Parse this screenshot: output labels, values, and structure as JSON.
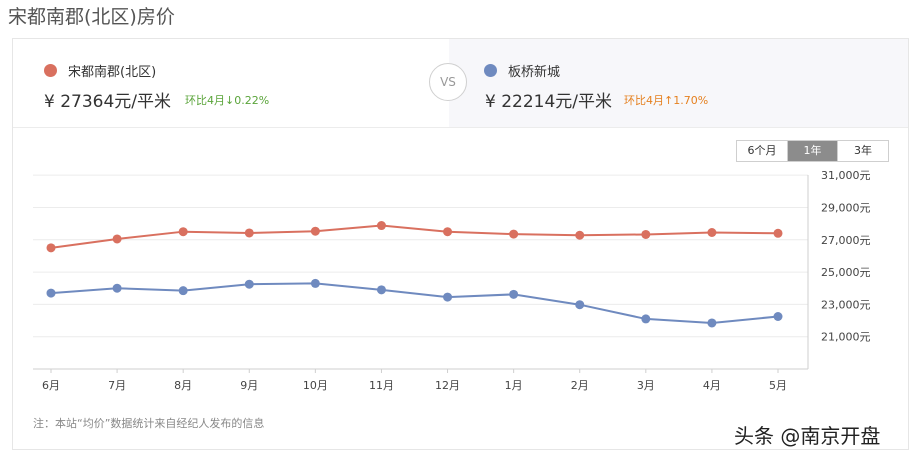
{
  "page_title": "宋都南郡(北区)房价",
  "compare": {
    "left": {
      "name": "宋都南郡(北区)",
      "price": "¥ 27364元/平米",
      "change": "环比4月↓0.22%",
      "color": "#d9705f",
      "change_color": "#5aa43a"
    },
    "vs_label": "VS",
    "right": {
      "name": "板桥新城",
      "price": "¥ 22214元/平米",
      "change": "环比4月↑1.70%",
      "color": "#6f8abf",
      "change_color": "#e5801f"
    }
  },
  "periods": {
    "options": [
      "6个月",
      "1年",
      "3年"
    ],
    "selected": "1年"
  },
  "chart_data": {
    "type": "line",
    "categories": [
      "6月",
      "7月",
      "8月",
      "9月",
      "10月",
      "11月",
      "12月",
      "1月",
      "2月",
      "3月",
      "4月",
      "5月"
    ],
    "series": [
      {
        "name": "宋都南郡(北区)",
        "color": "#d9705f",
        "values": [
          26500,
          27050,
          27500,
          27420,
          27530,
          27880,
          27500,
          27350,
          27280,
          27330,
          27450,
          27400
        ]
      },
      {
        "name": "板桥新城",
        "color": "#6f8abf",
        "values": [
          23700,
          24000,
          23850,
          24250,
          24300,
          23900,
          23450,
          23620,
          22980,
          22100,
          21850,
          22250
        ]
      }
    ],
    "y_ticks": [
      31000,
      29000,
      27000,
      25000,
      23000,
      21000
    ],
    "y_tick_labels": [
      "31,000元",
      "29,000元",
      "27,000元",
      "25,000元",
      "23,000元",
      "21,000元"
    ],
    "ylim": [
      19000,
      32000
    ],
    "grid": true,
    "axis_position": "right"
  },
  "footnote": "注：本站“均价”数据统计来自经纪人发布的信息",
  "watermark": "头条 @南京开盘"
}
